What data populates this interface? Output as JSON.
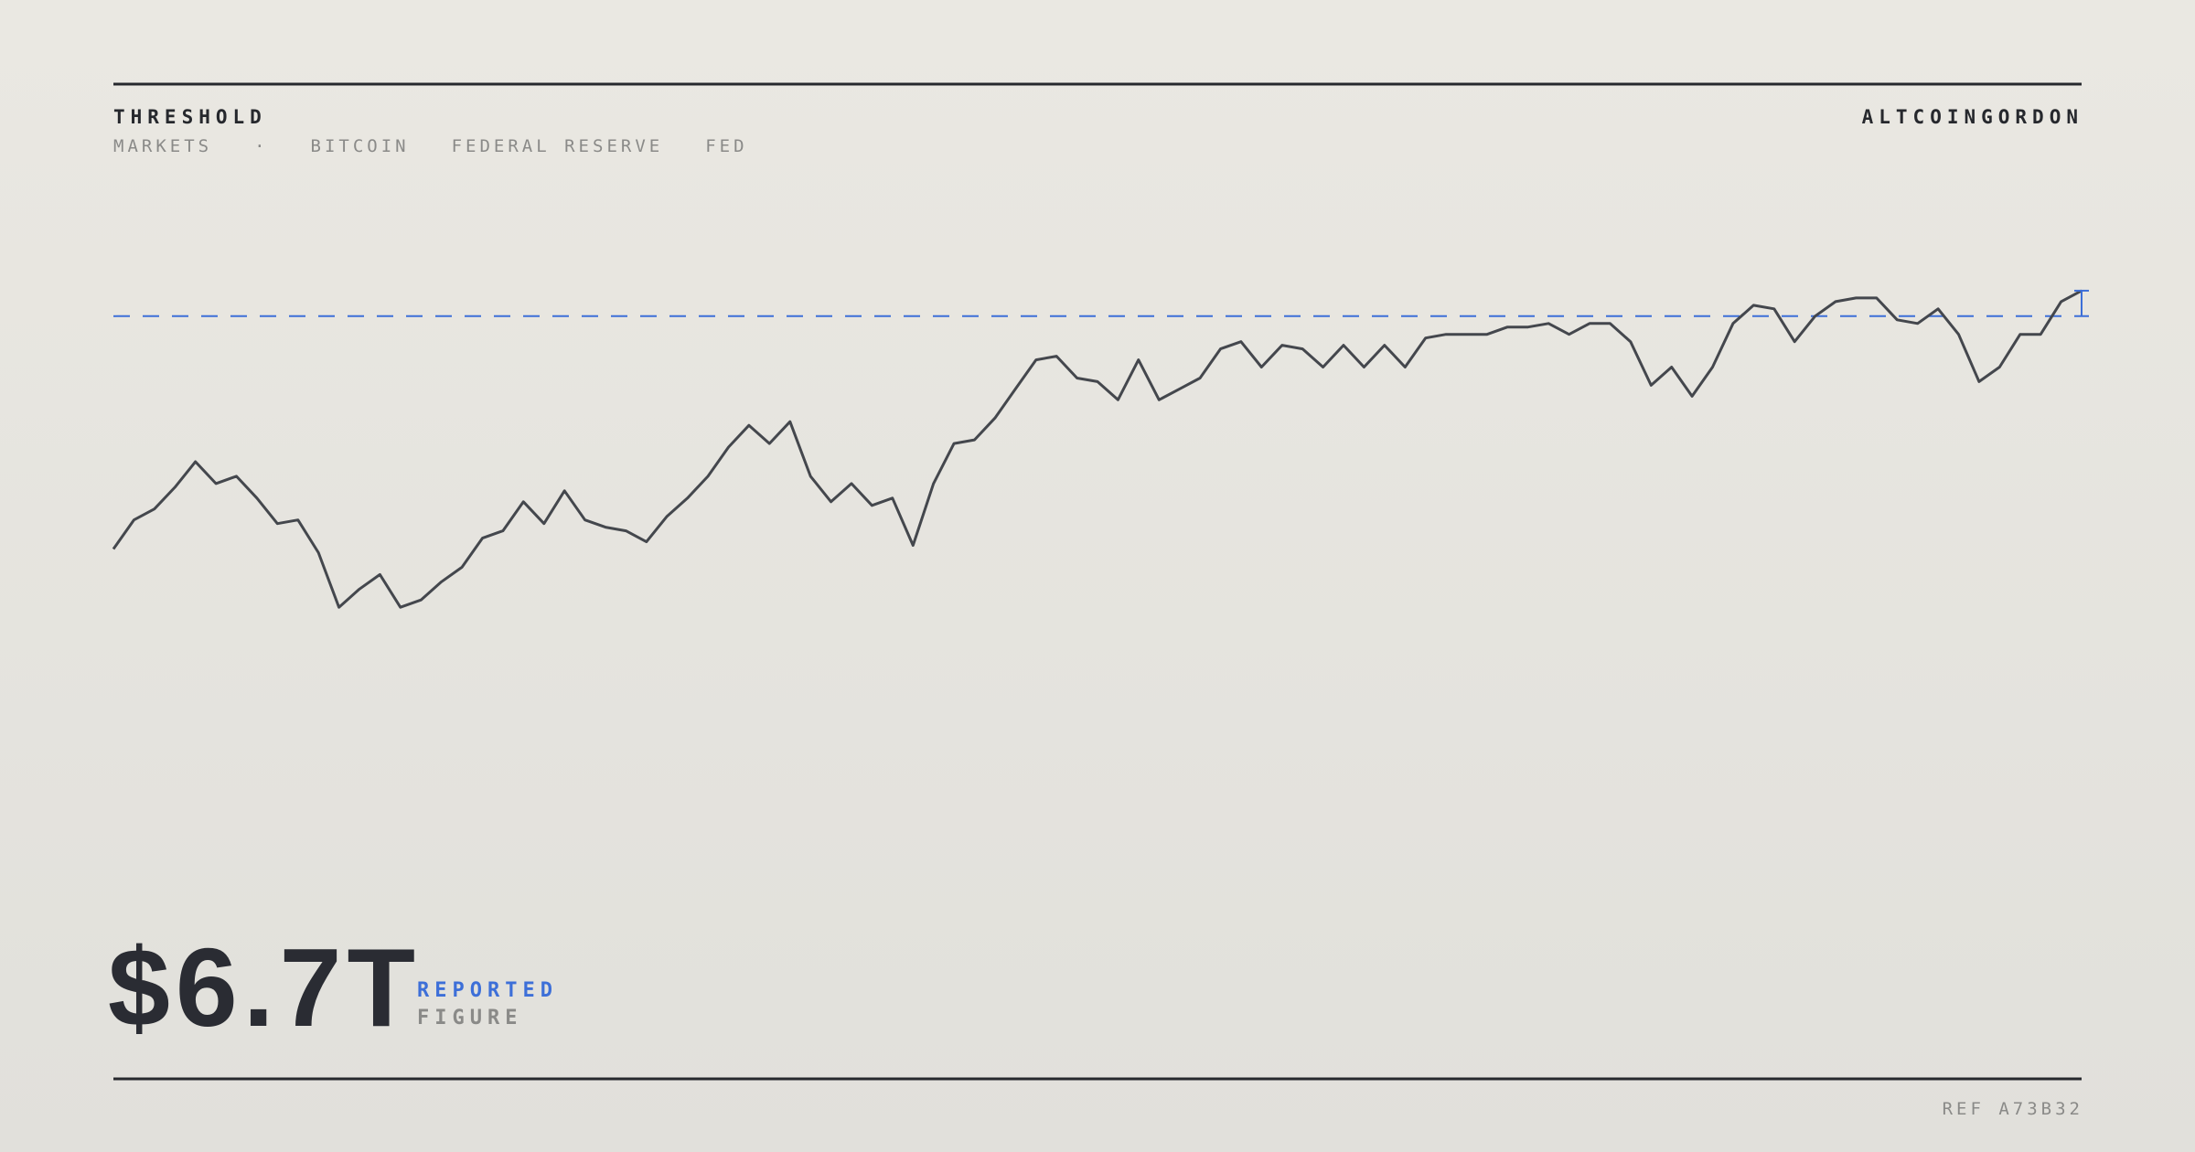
{
  "header": {
    "title": "THRESHOLD",
    "tags": [
      "MARKETS",
      "·",
      "BITCOIN",
      "FEDERAL RESERVE",
      "FED"
    ],
    "author": "ALTCOINGORDON"
  },
  "chart_data": {
    "type": "line",
    "color": "#44474d",
    "threshold": 90,
    "threshold_color": "#3d6fd8",
    "ylim": [
      0,
      100
    ],
    "values": [
      26,
      34,
      37,
      43,
      50,
      44,
      46,
      40,
      33,
      34,
      25,
      10,
      15,
      19,
      10,
      12,
      17,
      21,
      29,
      31,
      39,
      33,
      42,
      34,
      32,
      31,
      28,
      35,
      40,
      46,
      54,
      60,
      55,
      61,
      46,
      39,
      44,
      38,
      40,
      27,
      44,
      55,
      56,
      62,
      70,
      78,
      79,
      73,
      72,
      67,
      78,
      67,
      70,
      73,
      81,
      83,
      76,
      82,
      81,
      76,
      82,
      76,
      82,
      76,
      84,
      85,
      85,
      85,
      87,
      87,
      88,
      85,
      88,
      88,
      83,
      71,
      76,
      68,
      76,
      88,
      93,
      92,
      83,
      90,
      94,
      95,
      95,
      89,
      88,
      92,
      85,
      72,
      76,
      85,
      85,
      94,
      97
    ]
  },
  "figure": {
    "value": "$6.7T",
    "label": "REPORTED",
    "sublabel": "FIGURE"
  },
  "footer": {
    "ref": "REF A73B32"
  }
}
